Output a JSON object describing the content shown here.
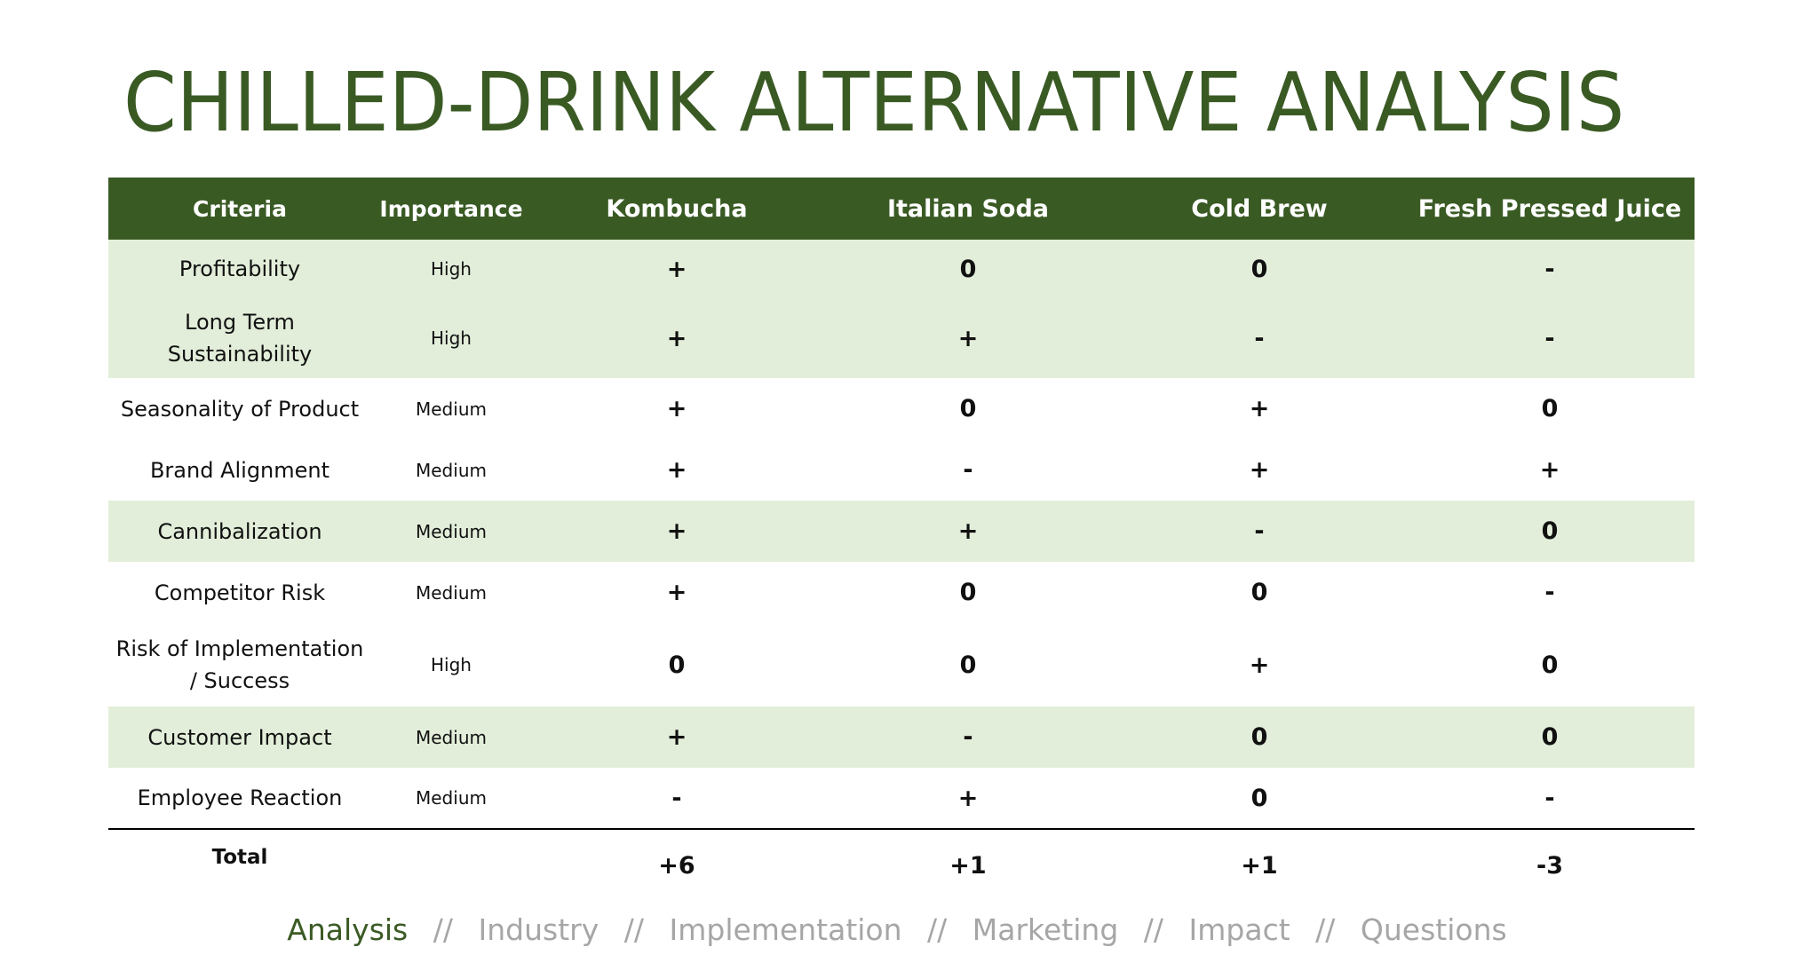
{
  "title": "CHILLED-DRINK ALTERNATIVE ANALYSIS",
  "colors": {
    "accent": "#3a5a24",
    "row_shade": "#e2eed9",
    "nav_inactive": "#a6a6a6"
  },
  "table": {
    "headers": [
      "Criteria",
      "Importance",
      "Kombucha",
      "Italian Soda",
      "Cold Brew",
      "Fresh Pressed Juice"
    ],
    "rows": [
      {
        "criteria": "Profitability",
        "importance": "High",
        "values": [
          "+",
          "0",
          "0",
          "-"
        ]
      },
      {
        "criteria": "Long Term Sustainability",
        "importance": "High",
        "values": [
          "+",
          "+",
          "-",
          "-"
        ]
      },
      {
        "criteria": "Seasonality of Product",
        "importance": "Medium",
        "values": [
          "+",
          "0",
          "+",
          "0"
        ]
      },
      {
        "criteria": "Brand Alignment",
        "importance": "Medium",
        "values": [
          "+",
          "-",
          "+",
          "+"
        ]
      },
      {
        "criteria": "Cannibalization",
        "importance": "Medium",
        "values": [
          "+",
          "+",
          "-",
          "0"
        ]
      },
      {
        "criteria": "Competitor Risk",
        "importance": "Medium",
        "values": [
          "+",
          "0",
          "0",
          "-"
        ]
      },
      {
        "criteria": "Risk of Implementation / Success",
        "importance": "High",
        "values": [
          "0",
          "0",
          "+",
          "0"
        ]
      },
      {
        "criteria": "Customer Impact",
        "importance": "Medium",
        "values": [
          "+",
          "-",
          "0",
          "0"
        ]
      },
      {
        "criteria": "Employee Reaction",
        "importance": "Medium",
        "values": [
          "-",
          "+",
          "0",
          "-"
        ]
      }
    ],
    "total": {
      "label": "Total",
      "values": [
        "+6",
        "+1",
        "+1",
        "-3"
      ]
    }
  },
  "nav": {
    "separator": "//",
    "items": [
      "Analysis",
      "Industry",
      "Implementation",
      "Marketing",
      "Impact",
      "Questions"
    ],
    "active": "Analysis"
  }
}
